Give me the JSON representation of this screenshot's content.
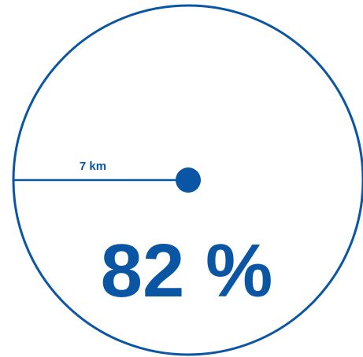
{
  "diagram": {
    "radius_label": "7 km",
    "percentage_label": "82 %",
    "colors": {
      "accent": "#0a56a5",
      "background": "#ffffff"
    }
  }
}
